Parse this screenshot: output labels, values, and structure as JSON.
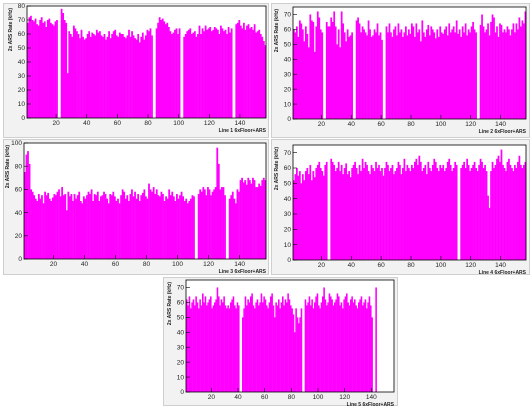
{
  "chart_data": [
    {
      "type": "bar",
      "xlabel": "Line 1 6xFloor+ARS",
      "ylabel": "2x ARS Rate (kHz)",
      "xlim": [
        1,
        157
      ],
      "ylim": [
        0,
        80
      ],
      "xticks": [
        20,
        40,
        60,
        80,
        100,
        120,
        140
      ],
      "yticks": [
        0,
        10,
        20,
        30,
        40,
        50,
        60,
        70,
        80
      ],
      "color": "#ff00ff",
      "x_start": 1,
      "values": [
        68,
        72,
        73,
        70,
        69,
        71,
        67,
        66,
        70,
        72,
        68,
        69,
        65,
        70,
        71,
        68,
        67,
        66,
        69,
        70,
        0,
        0,
        78,
        75,
        70,
        68,
        32,
        62,
        60,
        58,
        66,
        64,
        62,
        60,
        57,
        63,
        58,
        56,
        57,
        60,
        62,
        58,
        61,
        60,
        59,
        63,
        61,
        62,
        59,
        58,
        60,
        56,
        58,
        62,
        57,
        60,
        62,
        63,
        59,
        58,
        61,
        60,
        60,
        58,
        57,
        59,
        63,
        58,
        62,
        59,
        57,
        56,
        60,
        54,
        58,
        61,
        56,
        59,
        63,
        62,
        64,
        59,
        0,
        0,
        64,
        68,
        72,
        70,
        71,
        69,
        67,
        68,
        65,
        62,
        60,
        61,
        63,
        64,
        60,
        64,
        0,
        0,
        58,
        60,
        62,
        63,
        64,
        60,
        61,
        62,
        58,
        60,
        66,
        60,
        64,
        62,
        66,
        63,
        64,
        65,
        62,
        63,
        65,
        64,
        63,
        60,
        66,
        64,
        62,
        63,
        60,
        65,
        61,
        64,
        0,
        0,
        67,
        68,
        70,
        66,
        64,
        68,
        63,
        66,
        67,
        64,
        65,
        63,
        67,
        61,
        62,
        63,
        60,
        58,
        55,
        52
      ]
    },
    {
      "type": "bar",
      "xlabel": "Line 2 6xFloor+ARS",
      "ylabel": "2x ARS Rate (kHz)",
      "xlim": [
        1,
        157
      ],
      "ylim": [
        0,
        75
      ],
      "xticks": [
        20,
        40,
        60,
        80,
        100,
        120,
        140
      ],
      "yticks": [
        0,
        10,
        20,
        30,
        40,
        50,
        60,
        70
      ],
      "color": "#ff00ff",
      "x_start": 1,
      "values": [
        60,
        58,
        62,
        55,
        66,
        64,
        60,
        52,
        62,
        57,
        48,
        70,
        66,
        65,
        45,
        62,
        72,
        68,
        60,
        58,
        0,
        0,
        65,
        62,
        62,
        68,
        65,
        72,
        62,
        50,
        60,
        48,
        72,
        64,
        58,
        52,
        60,
        55,
        56,
        58,
        0,
        0,
        66,
        68,
        64,
        58,
        62,
        60,
        58,
        56,
        66,
        60,
        55,
        56,
        60,
        58,
        64,
        56,
        58,
        53,
        0,
        0,
        62,
        58,
        64,
        58,
        55,
        60,
        62,
        56,
        64,
        58,
        60,
        55,
        58,
        62,
        56,
        60,
        57,
        64,
        62,
        55,
        64,
        58,
        60,
        52,
        66,
        58,
        55,
        60,
        63,
        56,
        62,
        60,
        58,
        54,
        60,
        55,
        62,
        58,
        57,
        60,
        62,
        56,
        64,
        58,
        60,
        62,
        58,
        66,
        57,
        60,
        55,
        62,
        58,
        64,
        56,
        60,
        58,
        62,
        65,
        60,
        58,
        0,
        0,
        63,
        70,
        62,
        58,
        60,
        64,
        56,
        65,
        70,
        68,
        58,
        62,
        55,
        64,
        63,
        58,
        60,
        58,
        62,
        60,
        56,
        60,
        64,
        58,
        64,
        60,
        68,
        62,
        66,
        64,
        72
      ]
    },
    {
      "type": "bar",
      "xlabel": "Line 3 6xFloor+ARS",
      "ylabel": "2x ARS Rate (kHz)",
      "xlim": [
        1,
        157
      ],
      "ylim": [
        0,
        100
      ],
      "xticks": [
        20,
        40,
        60,
        80,
        100,
        120,
        140
      ],
      "yticks": [
        0,
        20,
        40,
        60,
        80,
        100
      ],
      "color": "#ff00ff",
      "x_start": 1,
      "values": [
        75,
        90,
        93,
        82,
        60,
        58,
        55,
        52,
        50,
        56,
        52,
        55,
        48,
        58,
        55,
        57,
        52,
        50,
        53,
        56,
        55,
        58,
        60,
        54,
        62,
        55,
        56,
        42,
        58,
        54,
        56,
        50,
        56,
        52,
        55,
        58,
        50,
        48,
        54,
        52,
        55,
        58,
        56,
        60,
        50,
        56,
        55,
        58,
        50,
        54,
        55,
        58,
        56,
        52,
        48,
        56,
        55,
        58,
        54,
        50,
        52,
        48,
        55,
        60,
        58,
        52,
        55,
        50,
        56,
        60,
        54,
        58,
        52,
        56,
        50,
        55,
        57,
        60,
        54,
        52,
        65,
        60,
        58,
        62,
        56,
        60,
        55,
        54,
        58,
        56,
        50,
        54,
        52,
        60,
        55,
        58,
        54,
        50,
        56,
        52,
        55,
        58,
        54,
        50,
        52,
        48,
        50,
        52,
        55,
        54,
        0,
        0,
        56,
        60,
        58,
        62,
        60,
        55,
        62,
        60,
        55,
        58,
        60,
        62,
        96,
        82,
        60,
        62,
        62,
        55,
        0,
        0,
        52,
        55,
        58,
        52,
        48,
        60,
        58,
        68,
        70,
        66,
        68,
        64,
        70,
        68,
        65,
        70,
        68,
        62,
        62,
        65,
        63,
        68,
        70,
        68
      ]
    },
    {
      "type": "bar",
      "xlabel": "Line 4 6xFloor+ARS",
      "ylabel": "2x ARS Rate (kHz)",
      "xlim": [
        1,
        157
      ],
      "ylim": [
        0,
        75
      ],
      "xticks": [
        20,
        40,
        60,
        80,
        100,
        120,
        140
      ],
      "yticks": [
        0,
        10,
        20,
        30,
        40,
        50,
        60,
        70
      ],
      "color": "#ff00ff",
      "x_start": 1,
      "values": [
        52,
        56,
        60,
        55,
        58,
        50,
        56,
        52,
        58,
        60,
        56,
        62,
        52,
        58,
        54,
        60,
        62,
        64,
        60,
        58,
        55,
        62,
        64,
        0,
        0,
        66,
        64,
        62,
        58,
        60,
        64,
        58,
        62,
        56,
        60,
        63,
        56,
        58,
        54,
        60,
        62,
        64,
        60,
        56,
        62,
        58,
        66,
        60,
        64,
        62,
        58,
        56,
        62,
        60,
        58,
        64,
        60,
        62,
        58,
        60,
        55,
        60,
        64,
        62,
        58,
        60,
        62,
        56,
        58,
        60,
        64,
        62,
        56,
        60,
        66,
        58,
        62,
        60,
        58,
        62,
        60,
        64,
        66,
        62,
        68,
        64,
        58,
        60,
        62,
        56,
        64,
        60,
        58,
        62,
        66,
        64,
        60,
        58,
        62,
        60,
        62,
        58,
        60,
        64,
        66,
        62,
        58,
        60,
        64,
        62,
        0,
        0,
        60,
        62,
        64,
        60,
        66,
        62,
        58,
        60,
        62,
        64,
        60,
        58,
        62,
        66,
        64,
        60,
        62,
        58,
        42,
        34,
        58,
        64,
        60,
        62,
        66,
        68,
        64,
        72,
        62,
        60,
        58,
        64,
        66,
        62,
        60,
        58,
        62,
        60,
        64,
        68,
        62,
        60,
        62,
        64
      ]
    },
    {
      "type": "bar",
      "xlabel": "Line 5 6xFloor+ARS",
      "ylabel": "2x ARS Rate (kHz)",
      "xlim": [
        1,
        157
      ],
      "ylim": [
        0,
        75
      ],
      "xticks": [
        20,
        40,
        60,
        80,
        100,
        120,
        140
      ],
      "yticks": [
        0,
        10,
        20,
        30,
        40,
        50,
        60,
        70
      ],
      "color": "#ff00ff",
      "x_start": 1,
      "values": [
        62,
        58,
        64,
        56,
        60,
        62,
        58,
        64,
        60,
        56,
        62,
        58,
        66,
        60,
        64,
        58,
        60,
        62,
        64,
        56,
        58,
        60,
        62,
        70,
        64,
        58,
        62,
        60,
        64,
        58,
        56,
        58,
        56,
        60,
        62,
        64,
        58,
        56,
        60,
        58,
        0,
        0,
        50,
        56,
        64,
        58,
        62,
        60,
        64,
        66,
        58,
        56,
        60,
        62,
        58,
        60,
        66,
        60,
        64,
        62,
        58,
        56,
        60,
        64,
        66,
        58,
        50,
        60,
        58,
        62,
        56,
        60,
        64,
        58,
        62,
        60,
        66,
        62,
        58,
        56,
        52,
        40,
        56,
        50,
        46,
        50,
        56,
        0,
        0,
        62,
        58,
        60,
        64,
        58,
        62,
        56,
        60,
        64,
        66,
        58,
        56,
        60,
        64,
        70,
        62,
        58,
        60,
        66,
        64,
        62,
        58,
        60,
        62,
        66,
        64,
        58,
        60,
        56,
        62,
        64,
        66,
        60,
        58,
        62,
        64,
        60,
        62,
        58,
        56,
        60,
        62,
        64,
        58,
        60,
        62,
        56,
        60,
        64,
        58,
        50,
        0,
        0,
        70,
        0,
        0,
        0,
        0,
        0,
        0,
        0,
        0,
        0,
        0,
        0,
        0,
        0
      ]
    }
  ]
}
